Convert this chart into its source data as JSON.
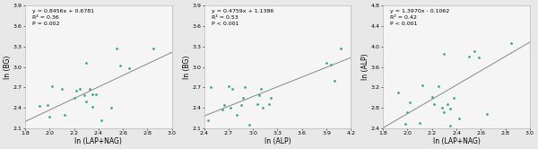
{
  "plots": [
    {
      "equation": "y = 0.8456x + 0.6781",
      "r2": "R² = 0.36",
      "p": "P = 0.002",
      "xlabel": "ln (LAP+NAG)",
      "ylabel": "ln (BG)",
      "xlim": [
        1.8,
        3.0
      ],
      "ylim": [
        2.1,
        3.9
      ],
      "xticks": [
        1.8,
        2.0,
        2.2,
        2.4,
        2.6,
        2.8,
        3.0
      ],
      "yticks": [
        2.1,
        2.4,
        2.7,
        3.0,
        3.3,
        3.6,
        3.9
      ],
      "scatter_x": [
        1.92,
        1.98,
        2.0,
        2.02,
        2.1,
        2.12,
        2.2,
        2.22,
        2.25,
        2.28,
        2.3,
        2.3,
        2.33,
        2.35,
        2.35,
        2.38,
        2.42,
        2.5,
        2.55,
        2.58,
        2.65,
        2.85
      ],
      "scatter_y": [
        2.43,
        2.44,
        2.27,
        2.72,
        2.68,
        2.3,
        2.55,
        2.65,
        2.68,
        2.58,
        2.5,
        3.06,
        2.68,
        2.6,
        2.42,
        2.6,
        2.22,
        2.4,
        3.27,
        3.02,
        2.98,
        3.27
      ],
      "slope": 0.8456,
      "intercept": 0.6781
    },
    {
      "equation": "y = 0.4759x + 1.1386",
      "r2": "R² = 0.53",
      "p": "P < 0.001",
      "xlabel": "ln (ALP)",
      "ylabel": "ln (BG)",
      "xlim": [
        2.4,
        4.2
      ],
      "ylim": [
        2.1,
        3.9
      ],
      "xticks": [
        2.4,
        2.7,
        3.0,
        3.3,
        3.6,
        3.9,
        4.2
      ],
      "yticks": [
        2.1,
        2.4,
        2.7,
        3.0,
        3.3,
        3.6,
        3.9
      ],
      "scatter_x": [
        2.45,
        2.48,
        2.62,
        2.65,
        2.7,
        2.72,
        2.75,
        2.8,
        2.85,
        2.88,
        2.9,
        2.95,
        3.05,
        3.08,
        3.1,
        3.12,
        3.2,
        3.22,
        3.9,
        3.95,
        4.0,
        4.08
      ],
      "scatter_y": [
        2.22,
        2.7,
        2.38,
        2.44,
        2.72,
        2.4,
        2.68,
        2.3,
        2.44,
        2.55,
        2.7,
        2.15,
        2.45,
        2.58,
        2.68,
        2.4,
        2.45,
        2.55,
        3.06,
        3.03,
        2.8,
        3.27
      ],
      "slope": 0.4759,
      "intercept": 1.1386
    },
    {
      "equation": "y = 1.3970x - 0.1062",
      "r2": "R² = 0.42",
      "p": "P < 0.001",
      "xlabel": "ln (LAP+NAG)",
      "ylabel": "ln (ALP)",
      "xlim": [
        1.8,
        3.0
      ],
      "ylim": [
        2.4,
        4.8
      ],
      "xticks": [
        1.8,
        2.0,
        2.2,
        2.4,
        2.6,
        2.8,
        3.0
      ],
      "yticks": [
        2.4,
        2.8,
        3.2,
        3.6,
        4.0,
        4.4,
        4.8
      ],
      "scatter_x": [
        1.92,
        1.98,
        2.0,
        2.02,
        2.1,
        2.12,
        2.2,
        2.22,
        2.25,
        2.28,
        2.3,
        2.3,
        2.33,
        2.35,
        2.35,
        2.38,
        2.42,
        2.5,
        2.55,
        2.58,
        2.65,
        2.85
      ],
      "scatter_y": [
        3.1,
        2.48,
        2.72,
        2.9,
        2.5,
        3.25,
        3.02,
        2.88,
        3.22,
        2.8,
        2.72,
        3.85,
        2.88,
        2.78,
        2.45,
        3.0,
        2.6,
        3.8,
        3.9,
        3.78,
        2.68,
        4.06
      ],
      "slope": 1.397,
      "intercept": -0.1062
    }
  ],
  "scatter_color": "#3aaa8a",
  "line_color": "#888888",
  "annotation_fontsize": 4.5,
  "label_fontsize": 5.5,
  "tick_fontsize": 4.5,
  "panel_facecolor": "#f5f5f5",
  "fig_facecolor": "#e8e8e8"
}
